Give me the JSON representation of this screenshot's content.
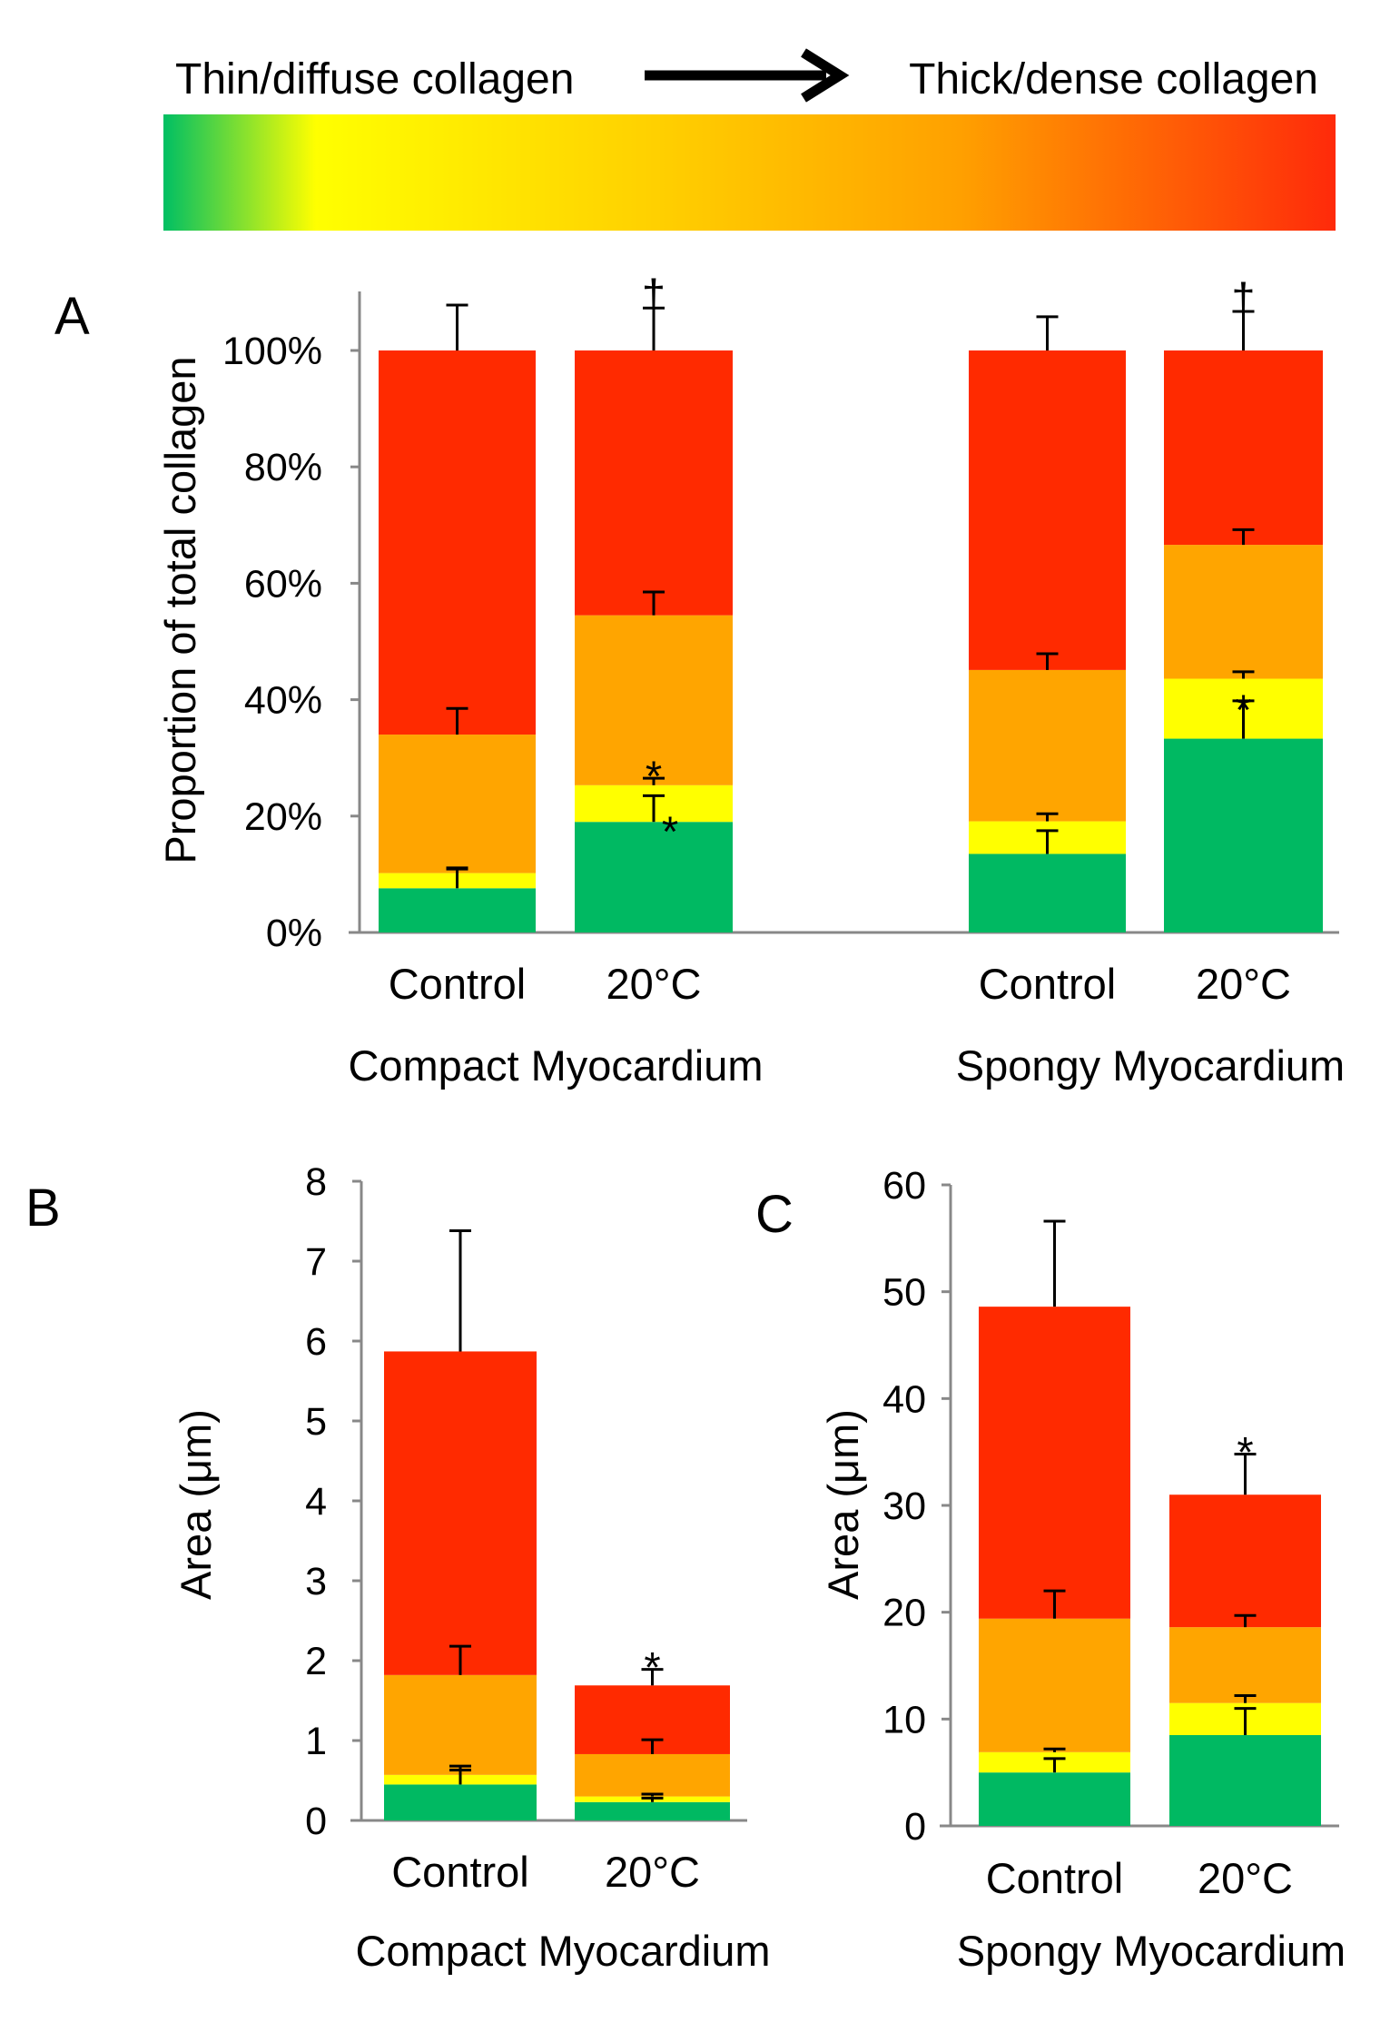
{
  "header": {
    "left_label": "Thin/diffuse collagen",
    "right_label": "Thick/dense collagen",
    "arrow_icon": "right-arrow",
    "gradient_colors": [
      "#00bf63",
      "#ffff00",
      "#ffd000",
      "#ffa000",
      "#ff2a0a"
    ]
  },
  "segment_colors": [
    "#00b962",
    "#ffff00",
    "#ffa500",
    "#ff2a00"
  ],
  "chart_data": [
    {
      "type": "bar",
      "stacked": true,
      "panel_label": "A",
      "ylabel": "Proportion of total collagen",
      "ylim": [
        0,
        100
      ],
      "yticks": [
        "0%",
        "20%",
        "40%",
        "60%",
        "80%",
        "100%"
      ],
      "categories": [
        "Control",
        "20°C",
        "Control",
        "20°C"
      ],
      "groups": [
        "Compact Myocardium",
        "Spongy Myocardium"
      ],
      "values": [
        [
          7.6,
          2.6,
          23.8,
          66.0
        ],
        [
          19.0,
          6.3,
          29.2,
          45.5
        ],
        [
          13.5,
          5.6,
          26.0,
          54.9
        ],
        [
          33.3,
          10.3,
          23.0,
          33.4
        ]
      ],
      "errors": [
        [
          3.3,
          0.9,
          4.5,
          7.8
        ],
        [
          4.5,
          1.2,
          4.0,
          7.3
        ],
        [
          4.0,
          1.3,
          2.8,
          5.8
        ],
        [
          6.5,
          1.2,
          2.6,
          6.7
        ]
      ],
      "annotations": [
        {
          "bar": 1,
          "segment": 1,
          "text": "*"
        },
        {
          "bar": 1,
          "segment": 0,
          "text": "*"
        },
        {
          "bar": 1,
          "segment": 3,
          "text": "†"
        },
        {
          "bar": 3,
          "segment": 0,
          "text": "*"
        },
        {
          "bar": 3,
          "segment": 3,
          "text": "†"
        }
      ]
    },
    {
      "type": "bar",
      "stacked": true,
      "panel_label": "B",
      "ylabel": "Area (μm)",
      "ylim": [
        0,
        8
      ],
      "yticks": [
        "0",
        "1",
        "2",
        "3",
        "4",
        "5",
        "6",
        "7",
        "8"
      ],
      "categories": [
        "Control",
        "20°C"
      ],
      "groups": [
        "Compact Myocardium"
      ],
      "values": [
        [
          0.45,
          0.12,
          1.25,
          4.05
        ],
        [
          0.23,
          0.07,
          0.53,
          0.86
        ]
      ],
      "errors": [
        [
          0.18,
          0.11,
          0.36,
          1.51
        ],
        [
          0.05,
          0.03,
          0.18,
          0.2
        ]
      ],
      "annotations": [
        {
          "bar": 1,
          "segment": 3,
          "text": "*"
        }
      ]
    },
    {
      "type": "bar",
      "stacked": true,
      "panel_label": "C",
      "ylabel": "Area (μm)",
      "ylim": [
        0,
        60
      ],
      "yticks": [
        "0",
        "10",
        "20",
        "30",
        "40",
        "50",
        "60"
      ],
      "categories": [
        "Control",
        "20°C"
      ],
      "groups": [
        "Spongy Myocardium"
      ],
      "values": [
        [
          5.0,
          1.9,
          12.5,
          29.2
        ],
        [
          8.5,
          3.0,
          7.1,
          12.4
        ]
      ],
      "errors": [
        [
          1.3,
          0.3,
          2.6,
          8.0
        ],
        [
          2.5,
          0.7,
          1.1,
          3.8
        ]
      ],
      "annotations": [
        {
          "bar": 1,
          "segment": 3,
          "text": "*"
        }
      ]
    }
  ]
}
